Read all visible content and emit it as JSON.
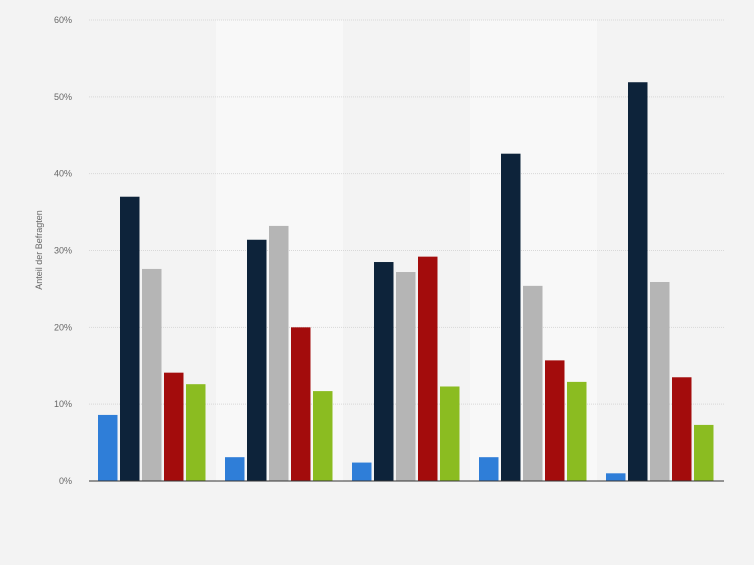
{
  "chart_data": {
    "type": "bar",
    "ylabel": "Anteil der Befragten",
    "xlabel": "",
    "title": "",
    "categories": [
      "",
      "",
      "",
      "",
      ""
    ],
    "ylim": [
      0,
      60
    ],
    "yticks": [
      0,
      10,
      20,
      30,
      40,
      50,
      60
    ],
    "ytick_labels": [
      "0%",
      "10%",
      "20%",
      "30%",
      "40%",
      "50%",
      "60%"
    ],
    "grid": true,
    "series": [
      {
        "color": "#2f7ed8",
        "values": [
          8.6,
          3.1,
          2.4,
          3.1,
          1.0
        ]
      },
      {
        "color": "#0d233a",
        "values": [
          37.0,
          31.4,
          28.5,
          42.6,
          51.9
        ]
      },
      {
        "color": "#b5b5b5",
        "values": [
          27.6,
          33.2,
          27.2,
          25.4,
          25.9
        ]
      },
      {
        "color": "#a30c0c",
        "values": [
          14.1,
          20.0,
          29.2,
          15.7,
          13.5
        ]
      },
      {
        "color": "#8bbc21",
        "values": [
          12.6,
          11.7,
          12.3,
          12.9,
          7.3
        ]
      }
    ]
  }
}
